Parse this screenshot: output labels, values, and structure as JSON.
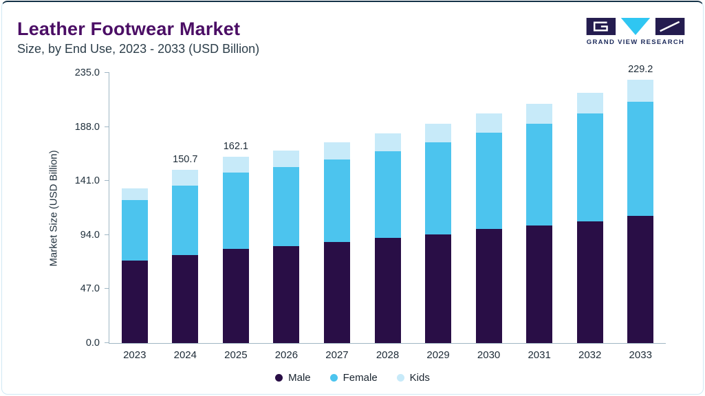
{
  "header": {
    "title": "Leather Footwear Market",
    "subtitle": "Size, by End Use, 2023 - 2033 (USD Billion)"
  },
  "logo": {
    "text": "GRAND VIEW RESEARCH"
  },
  "chart_data": {
    "type": "bar",
    "stacked": true,
    "title": "Leather Footwear Market Size, by End Use, 2023 - 2033 (USD Billion)",
    "xlabel": "",
    "ylabel": "Market Size (USD Billion)",
    "ylim": [
      0,
      235
    ],
    "yticks": [
      0.0,
      47.0,
      94.0,
      141.0,
      188.0,
      235.0
    ],
    "grid": false,
    "legend_position": "bottom",
    "categories": [
      "2023",
      "2024",
      "2025",
      "2026",
      "2027",
      "2028",
      "2029",
      "2030",
      "2031",
      "2032",
      "2033"
    ],
    "series": [
      {
        "name": "Male",
        "color": "#290e46",
        "values": [
          72.0,
          76.5,
          82.0,
          84.5,
          88.0,
          91.5,
          94.5,
          99.0,
          102.0,
          106.0,
          110.5
        ]
      },
      {
        "name": "Female",
        "color": "#4cc4ee",
        "values": [
          52.5,
          60.5,
          66.5,
          68.5,
          71.5,
          75.5,
          80.0,
          84.0,
          88.5,
          93.5,
          99.5
        ]
      },
      {
        "name": "Kids",
        "color": "#c7eaf9",
        "values": [
          10.0,
          13.7,
          13.6,
          14.5,
          15.0,
          15.5,
          16.5,
          17.0,
          17.5,
          18.0,
          19.2
        ]
      }
    ],
    "annotations": [
      {
        "category": "2024",
        "text": "150.7"
      },
      {
        "category": "2025",
        "text": "162.1"
      },
      {
        "category": "2033",
        "text": "229.2"
      }
    ]
  },
  "colors": {
    "accent_border": "#cfe8f4",
    "top_border": "#143247",
    "title": "#4b0e65",
    "axis": "#9fb6c4"
  }
}
